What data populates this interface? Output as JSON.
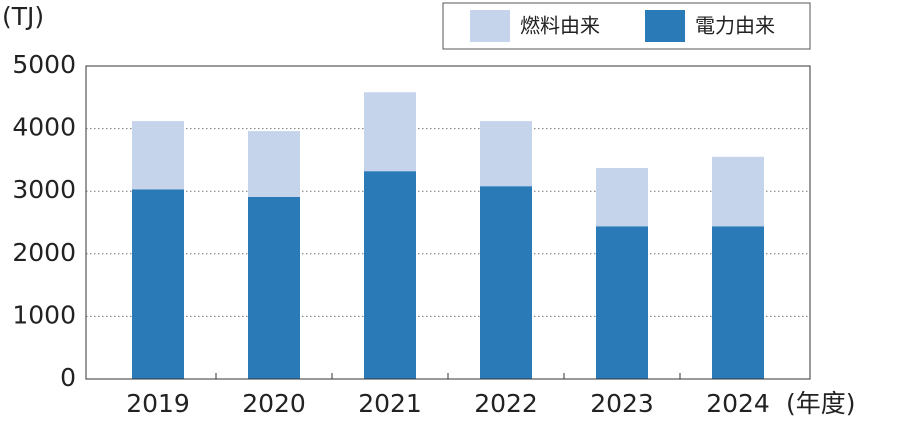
{
  "chart_data": {
    "type": "stacked_bar",
    "y_axis_label": "(TJ)",
    "x_axis_label": "(年度)",
    "categories": [
      "2019",
      "2020",
      "2021",
      "2022",
      "2023",
      "2024"
    ],
    "series": [
      {
        "name": "電力由来",
        "color": "#2a7ab8",
        "values": [
          3030,
          2910,
          3320,
          3080,
          2440,
          2440
        ]
      },
      {
        "name": "燃料由来",
        "color": "#c5d4ea",
        "values": [
          1090,
          1050,
          1260,
          1040,
          930,
          1110
        ]
      }
    ],
    "ylim": [
      0,
      5000
    ],
    "yticks": [
      0,
      1000,
      2000,
      3000,
      4000,
      5000
    ],
    "grid": true
  }
}
